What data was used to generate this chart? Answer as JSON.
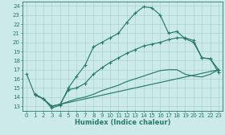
{
  "xlabel": "Humidex (Indice chaleur)",
  "ylabel": "",
  "xlim": [
    -0.5,
    23.5
  ],
  "ylim": [
    12.5,
    24.5
  ],
  "background_color": "#cceaea",
  "grid_color": "#aad4d4",
  "line_color": "#2a7a6a",
  "line1_x": [
    0,
    1,
    2,
    3,
    4,
    5,
    6,
    7,
    8,
    9,
    10,
    11,
    12,
    13,
    14,
    15,
    16,
    17,
    18,
    19,
    20,
    21,
    22,
    23
  ],
  "line1_y": [
    16.5,
    14.2,
    13.8,
    12.8,
    13.1,
    15.0,
    16.3,
    17.5,
    19.5,
    20.0,
    20.5,
    21.0,
    22.2,
    23.2,
    23.9,
    23.8,
    23.0,
    21.0,
    21.2,
    20.4,
    20.0,
    18.3,
    18.2,
    16.7
  ],
  "line2_x": [
    1,
    2,
    3,
    4,
    5,
    6,
    7,
    8,
    9,
    10,
    11,
    12,
    13,
    14,
    15,
    16,
    17,
    18,
    19,
    20,
    21,
    22,
    23
  ],
  "line2_y": [
    14.3,
    13.8,
    13.0,
    13.2,
    14.8,
    15.0,
    15.5,
    16.5,
    17.2,
    17.8,
    18.3,
    18.8,
    19.2,
    19.6,
    19.8,
    20.0,
    20.3,
    20.5,
    20.5,
    20.2,
    18.3,
    18.2,
    17.0
  ],
  "line3_x": [
    1,
    2,
    3,
    4,
    23
  ],
  "line3_y": [
    14.3,
    13.8,
    13.0,
    13.2,
    17.0
  ],
  "line4_x": [
    4,
    5,
    6,
    7,
    8,
    9,
    10,
    11,
    12,
    13,
    14,
    15,
    16,
    17,
    18,
    19,
    20,
    21,
    22,
    23
  ],
  "line4_y": [
    13.2,
    13.5,
    13.8,
    14.0,
    14.3,
    14.7,
    15.0,
    15.3,
    15.7,
    16.0,
    16.3,
    16.6,
    16.9,
    17.0,
    17.0,
    16.5,
    16.3,
    16.2,
    16.5,
    17.0
  ],
  "xticks": [
    0,
    1,
    2,
    3,
    4,
    5,
    6,
    7,
    8,
    9,
    10,
    11,
    12,
    13,
    14,
    15,
    16,
    17,
    18,
    19,
    20,
    21,
    22,
    23
  ],
  "yticks": [
    13,
    14,
    15,
    16,
    17,
    18,
    19,
    20,
    21,
    22,
    23,
    24
  ],
  "tick_fontsize": 5.0,
  "label_fontsize": 6.0
}
